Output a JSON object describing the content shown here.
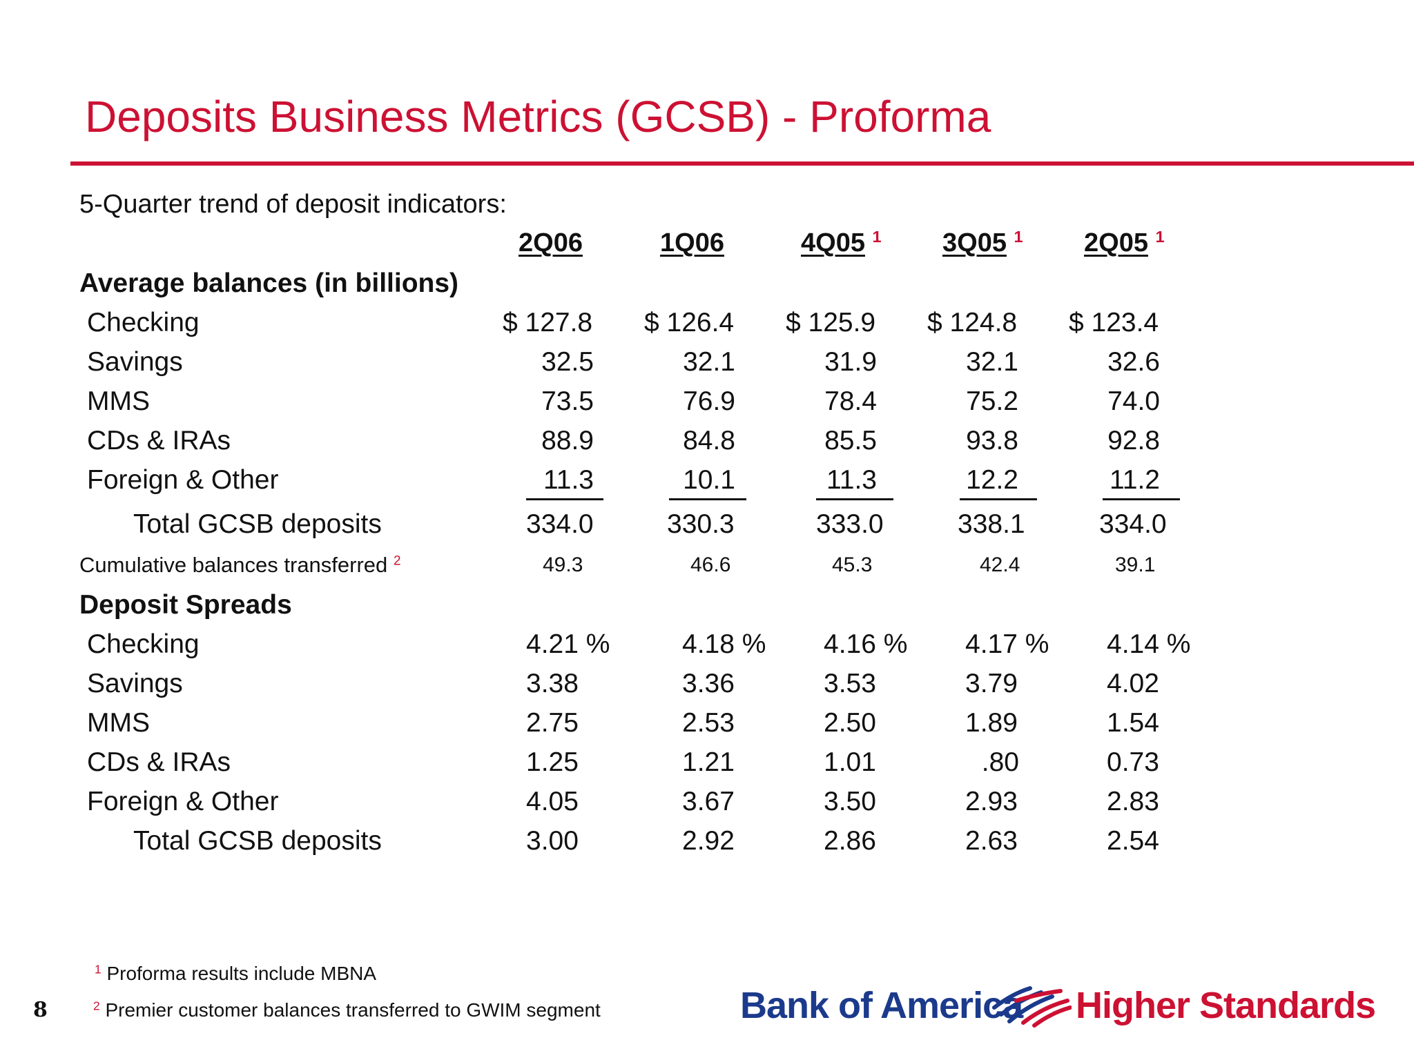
{
  "title": "Deposits Business Metrics (GCSB) - Proforma",
  "subtitle": "5-Quarter trend of deposit indicators:",
  "columns": [
    {
      "label": "2Q06",
      "note": ""
    },
    {
      "label": "1Q06",
      "note": ""
    },
    {
      "label": "4Q05",
      "note": "1"
    },
    {
      "label": "3Q05",
      "note": "1"
    },
    {
      "label": "2Q05",
      "note": "1"
    }
  ],
  "balances": {
    "heading": "Average balances (in billions)",
    "rows": [
      {
        "label": "Checking",
        "values": [
          "$ 127.8",
          "$ 126.4",
          "$ 125.9",
          "$ 124.8",
          "$ 123.4"
        ]
      },
      {
        "label": "Savings",
        "values": [
          "32.5",
          "32.1",
          "31.9",
          "32.1",
          "32.6"
        ]
      },
      {
        "label": "MMS",
        "values": [
          "73.5",
          "76.9",
          "78.4",
          "75.2",
          "74.0"
        ]
      },
      {
        "label": "CDs & IRAs",
        "values": [
          "88.9",
          "84.8",
          "85.5",
          "93.8",
          "92.8"
        ]
      },
      {
        "label": "Foreign & Other",
        "values": [
          "11.3",
          "10.1",
          "11.3",
          "12.2",
          "11.2"
        ]
      }
    ],
    "total": {
      "label": "Total GCSB deposits",
      "values": [
        "334.0",
        "330.3",
        "333.0",
        "338.1",
        "334.0"
      ]
    },
    "cumulative": {
      "label": "Cumulative balances transferred",
      "note": "2",
      "values": [
        "49.3",
        "46.6",
        "45.3",
        "42.4",
        "39.1"
      ]
    }
  },
  "spreads": {
    "heading": "Deposit Spreads",
    "rows": [
      {
        "label": "Checking",
        "values": [
          "4.21 %",
          "4.18 %",
          "4.16 %",
          "4.17 %",
          "4.14 %"
        ]
      },
      {
        "label": "Savings",
        "values": [
          "3.38",
          "3.36",
          "3.53",
          "3.79",
          "4.02"
        ]
      },
      {
        "label": "MMS",
        "values": [
          "2.75",
          "2.53",
          "2.50",
          "1.89",
          "1.54"
        ]
      },
      {
        "label": "CDs & IRAs",
        "values": [
          "1.25",
          "1.21",
          "1.01",
          ".80",
          "0.73"
        ]
      },
      {
        "label": "Foreign & Other",
        "values": [
          "4.05",
          "3.67",
          "3.50",
          "2.93",
          "2.83"
        ]
      },
      {
        "label": "Total GCSB deposits",
        "values": [
          "3.00",
          "2.92",
          "2.86",
          "2.63",
          "2.54"
        ]
      }
    ]
  },
  "footnotes": [
    {
      "mark": "1",
      "text": "Proforma results include MBNA"
    },
    {
      "mark": "2",
      "text": "Premier customer balances transferred to GWIM segment"
    }
  ],
  "page_number": "8",
  "logo": {
    "bank": "Bank of America",
    "tagline": "Higher Standards",
    "icon": "flag-icon"
  },
  "colors": {
    "accent": "#cc1133",
    "brand_blue": "#1b3a8c"
  }
}
